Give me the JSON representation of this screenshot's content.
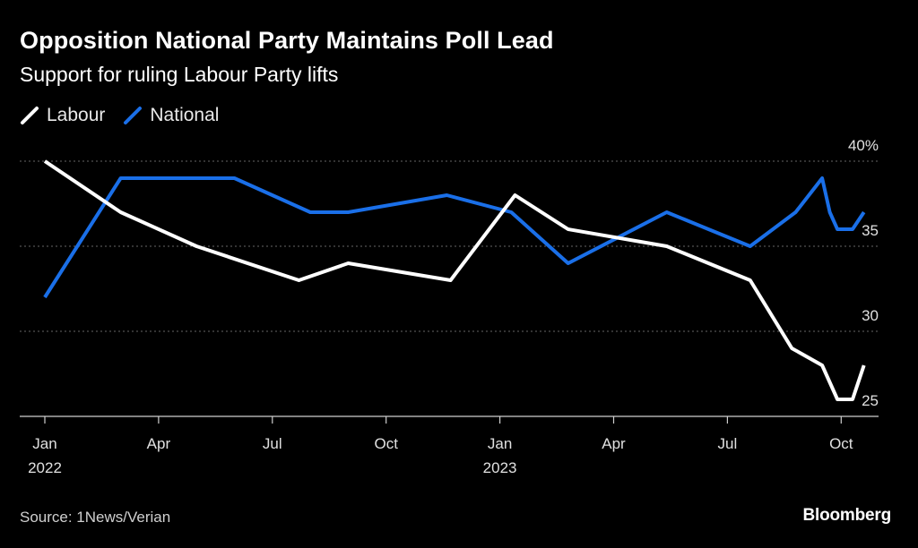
{
  "title": "Opposition National Party Maintains Poll Lead",
  "subtitle": "Support for ruling Labour Party lifts",
  "source": "Source: 1News/Verian",
  "brand": "Bloomberg",
  "colors": {
    "background": "#000000",
    "labour": "#ffffff",
    "national": "#1a6fe8",
    "grid": "#666666"
  },
  "chart_data": {
    "type": "line",
    "title": "Opposition National Party Maintains Poll Lead",
    "subtitle": "Support for ruling Labour Party lifts",
    "xlabel": "",
    "ylabel": "",
    "ylim": [
      25,
      40
    ],
    "xlim": [
      "2022-01",
      "2023-10"
    ],
    "y_ticks": [
      {
        "value": 40,
        "label": "40%"
      },
      {
        "value": 35,
        "label": "35"
      },
      {
        "value": 30,
        "label": "30"
      },
      {
        "value": 25,
        "label": "25"
      }
    ],
    "x_ticks": [
      {
        "month": 0,
        "label": "Jan",
        "year": "2022"
      },
      {
        "month": 3,
        "label": "Apr",
        "year": ""
      },
      {
        "month": 6,
        "label": "Jul",
        "year": ""
      },
      {
        "month": 9,
        "label": "Oct",
        "year": ""
      },
      {
        "month": 12,
        "label": "Jan",
        "year": "2023"
      },
      {
        "month": 15,
        "label": "Apr",
        "year": ""
      },
      {
        "month": 18,
        "label": "Jul",
        "year": ""
      },
      {
        "month": 21,
        "label": "Oct",
        "year": ""
      }
    ],
    "grid": true,
    "series": [
      {
        "name": "Labour",
        "color": "#ffffff",
        "points": [
          {
            "month": 0.0,
            "value": 40
          },
          {
            "month": 2.0,
            "value": 37
          },
          {
            "month": 4.0,
            "value": 35
          },
          {
            "month": 6.7,
            "value": 33
          },
          {
            "month": 8.0,
            "value": 34
          },
          {
            "month": 10.7,
            "value": 33
          },
          {
            "month": 12.4,
            "value": 38
          },
          {
            "month": 13.8,
            "value": 36
          },
          {
            "month": 16.4,
            "value": 35
          },
          {
            "month": 18.6,
            "value": 33
          },
          {
            "month": 19.7,
            "value": 29
          },
          {
            "month": 20.5,
            "value": 28
          },
          {
            "month": 20.9,
            "value": 26
          },
          {
            "month": 21.3,
            "value": 26
          },
          {
            "month": 21.6,
            "value": 28
          }
        ]
      },
      {
        "name": "National",
        "color": "#1a6fe8",
        "points": [
          {
            "month": 0.0,
            "value": 32
          },
          {
            "month": 2.0,
            "value": 39
          },
          {
            "month": 5.0,
            "value": 39
          },
          {
            "month": 7.0,
            "value": 37
          },
          {
            "month": 8.0,
            "value": 37
          },
          {
            "month": 10.6,
            "value": 38
          },
          {
            "month": 12.3,
            "value": 37
          },
          {
            "month": 13.8,
            "value": 34
          },
          {
            "month": 16.4,
            "value": 37
          },
          {
            "month": 18.6,
            "value": 35
          },
          {
            "month": 19.8,
            "value": 37
          },
          {
            "month": 20.5,
            "value": 39
          },
          {
            "month": 20.7,
            "value": 37
          },
          {
            "month": 20.9,
            "value": 36
          },
          {
            "month": 21.3,
            "value": 36
          },
          {
            "month": 21.6,
            "value": 37
          }
        ]
      }
    ],
    "legend": {
      "position": "top-left",
      "entries": [
        "Labour",
        "National"
      ]
    }
  }
}
